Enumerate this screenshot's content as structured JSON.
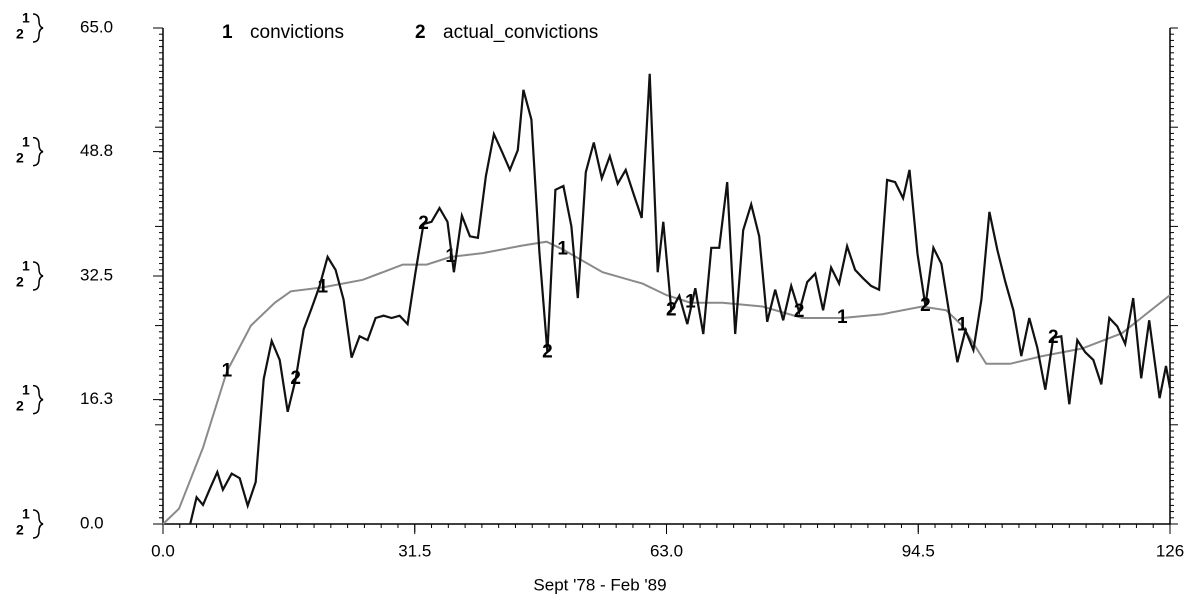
{
  "chart_data": {
    "type": "line",
    "x_label": "Sept '78 - Feb '89",
    "xlim": [
      0,
      126
    ],
    "xticks": [
      {
        "value": 0,
        "label": "0.0"
      },
      31.5,
      {
        "value": 63,
        "label": "63.0"
      },
      94.5,
      126
    ],
    "ylim": [
      0,
      65
    ],
    "yticks": [
      {
        "value": 0,
        "label": "0.0"
      },
      16.3,
      32.5,
      48.8,
      {
        "value": 65,
        "label": "65.0"
      }
    ],
    "series": [
      {
        "name": "convictions",
        "label": "1",
        "color": "#8a8a8a",
        "x": [
          0,
          2,
          5,
          8,
          11,
          14,
          16,
          20,
          25,
          30,
          33,
          36,
          40,
          45,
          48,
          50,
          55,
          60,
          63,
          66,
          70,
          75,
          80,
          85,
          90,
          95,
          98,
          100,
          103,
          106,
          110,
          115,
          120,
          126
        ],
        "values": [
          0,
          2,
          10,
          20,
          26,
          29,
          30.5,
          31,
          32,
          34,
          34,
          35,
          35.5,
          36.5,
          37,
          36,
          33,
          31.5,
          30,
          29,
          29,
          28.5,
          27,
          27,
          27.5,
          28.5,
          28,
          26,
          21,
          21,
          22,
          23,
          25,
          30
        ]
      },
      {
        "name": "actual_convictions",
        "label": "2",
        "color": "#111111",
        "x": [
          3.4,
          4.2,
          5,
          5.9,
          6.8,
          7.5,
          8.6,
          9.6,
          10.6,
          11.6,
          12.6,
          13.6,
          14.6,
          15.6,
          16.6,
          17.6,
          18.6,
          19.6,
          20.6,
          21.6,
          22.6,
          23.6,
          24.6,
          25.6,
          26.6,
          27.6,
          28.6,
          29.6,
          30.6,
          31.6,
          32.6,
          33.6,
          34.6,
          35.6,
          36.4,
          37.4,
          38.4,
          39.4,
          40.4,
          41.4,
          42.4,
          43.4,
          44.4,
          45.1,
          46.1,
          47.1,
          48.1,
          49.1,
          50.1,
          51.1,
          51.9,
          52.9,
          53.9,
          54.9,
          55.9,
          56.9,
          57.9,
          58.9,
          59.9,
          60.9,
          61.9,
          62.6,
          63.6,
          64.6,
          65.6,
          66.6,
          67.6,
          68.6,
          69.6,
          70.6,
          71.6,
          72.6,
          73.6,
          74.6,
          75.6,
          76.6,
          77.6,
          78.6,
          79.6,
          80.6,
          81.6,
          82.6,
          83.6,
          84.6,
          85.6,
          86.6,
          87.6,
          88.6,
          89.6,
          90.6,
          91.6,
          92.6,
          93.4,
          94.4,
          95.4,
          96.4,
          97.4,
          98.4,
          99.4,
          100.4,
          101.4,
          102.4,
          103.4,
          104.4,
          105.4,
          106.4,
          107.4,
          108.4,
          109.4,
          110.4,
          111.4,
          112.4,
          113.4,
          114.4,
          115.4,
          116.4,
          117.4,
          118.4,
          119.4,
          120.4,
          121.4,
          122.4,
          123.4,
          124.7,
          125.5,
          126
        ],
        "values": [
          0,
          3.5,
          2.5,
          4.7,
          6.8,
          4.5,
          6.6,
          6,
          2.4,
          5.5,
          19,
          24,
          21.5,
          14.7,
          19,
          25.5,
          28.3,
          31.2,
          35,
          33.3,
          29.4,
          21.8,
          24.6,
          24.1,
          27,
          27.3,
          27,
          27.3,
          26.2,
          33,
          39.3,
          39.6,
          41.4,
          39.6,
          33,
          40.4,
          37.7,
          37.5,
          45.6,
          51.1,
          48.8,
          46.4,
          49,
          56.9,
          53,
          35.6,
          22.5,
          43.8,
          44.3,
          39,
          29.6,
          46.1,
          50,
          45.3,
          48.2,
          44.6,
          46.4,
          43.2,
          40.1,
          59,
          33,
          39.6,
          28,
          29.9,
          26.2,
          30.9,
          24.9,
          36.2,
          36.2,
          44.8,
          24.9,
          38.5,
          41.9,
          37.7,
          26.5,
          30.7,
          26.7,
          31.2,
          27.8,
          31.7,
          32.8,
          28,
          33.6,
          31.5,
          36.4,
          33.3,
          32.2,
          31.2,
          30.7,
          45.1,
          44.8,
          42.7,
          46.4,
          35.4,
          28.6,
          36.2,
          34.1,
          27.5,
          21.2,
          25.4,
          22.8,
          29.4,
          40.9,
          35.9,
          31.7,
          28,
          22,
          27,
          23.1,
          17.6,
          24.4,
          24.6,
          15.7,
          24.1,
          22.5,
          21.5,
          18.3,
          27,
          25.9,
          23.6,
          29.6,
          19.1,
          26.7,
          16.5,
          20.7,
          17.8
        ]
      }
    ]
  }
}
